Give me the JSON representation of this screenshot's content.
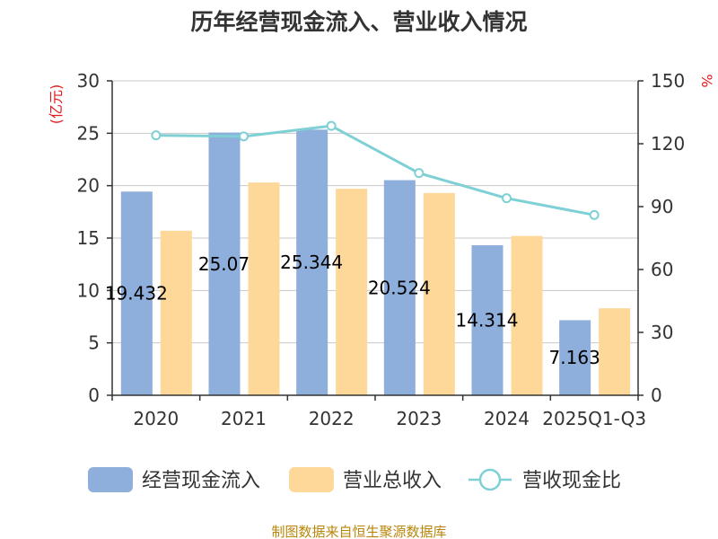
{
  "chart_data": {
    "type": "bar",
    "title": "历年经营现金流入、营业收入情况",
    "categories": [
      "2020",
      "2021",
      "2022",
      "2023",
      "2024",
      "2025Q1-Q3"
    ],
    "y_left": {
      "unit": "(亿元)",
      "ylim": [
        0,
        30
      ],
      "ticks": [
        "0",
        "5",
        "10",
        "15",
        "20",
        "25",
        "30"
      ]
    },
    "y_right": {
      "unit": "%",
      "ylim": [
        0,
        150
      ],
      "ticks": [
        "0",
        "30",
        "60",
        "90",
        "120",
        "150"
      ]
    },
    "series": [
      {
        "name": "经营现金流入",
        "type": "bar",
        "axis": "left",
        "color": "#8eaedb",
        "values": [
          19.432,
          25.07,
          25.344,
          20.524,
          14.314,
          7.163
        ],
        "labels": [
          "19.432",
          "25.07",
          "25.344",
          "20.524",
          "14.314",
          "7.163"
        ]
      },
      {
        "name": "营业总收入",
        "type": "bar",
        "axis": "left",
        "color": "#fdd899",
        "values": [
          15.7,
          20.3,
          19.7,
          19.3,
          15.2,
          8.3
        ]
      },
      {
        "name": "营收现金比",
        "type": "line",
        "axis": "right",
        "color": "#7fd0d5",
        "values": [
          124,
          123.5,
          128.5,
          106,
          94,
          86
        ]
      }
    ],
    "grid": true,
    "legend_position": "bottom"
  },
  "source_text": "制图数据来自恒生聚源数据库"
}
